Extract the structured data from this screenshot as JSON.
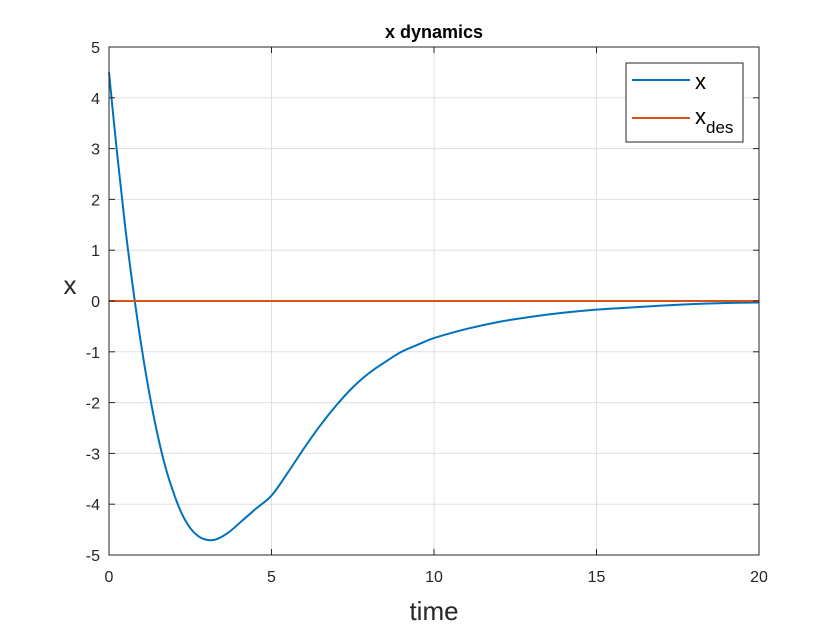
{
  "chart_data": {
    "type": "line",
    "title": "x dynamics",
    "xlabel": "time",
    "ylabel": "x",
    "xlim": [
      0,
      20
    ],
    "ylim": [
      -5,
      5
    ],
    "xticks": [
      0,
      5,
      10,
      15,
      20
    ],
    "yticks": [
      -5,
      -4,
      -3,
      -2,
      -1,
      0,
      1,
      2,
      3,
      4,
      5
    ],
    "grid": true,
    "legend_position": "top-right",
    "series": [
      {
        "name": "x",
        "color": "#0072BD",
        "x": [
          0,
          0.25,
          0.5,
          0.75,
          1,
          1.25,
          1.5,
          1.75,
          2,
          2.25,
          2.5,
          2.75,
          3,
          3.25,
          3.5,
          3.75,
          4,
          4.5,
          5,
          5.5,
          6,
          6.5,
          7,
          7.5,
          8,
          8.5,
          9,
          9.5,
          10,
          11,
          12,
          13,
          14,
          15,
          16,
          17,
          18,
          19,
          20
        ],
        "y": [
          4.5,
          2.9,
          1.45,
          0.2,
          -0.9,
          -1.85,
          -2.65,
          -3.3,
          -3.8,
          -4.2,
          -4.47,
          -4.63,
          -4.7,
          -4.7,
          -4.63,
          -4.52,
          -4.38,
          -4.1,
          -3.83,
          -3.38,
          -2.9,
          -2.45,
          -2.05,
          -1.7,
          -1.42,
          -1.2,
          -1.0,
          -0.86,
          -0.73,
          -0.55,
          -0.41,
          -0.31,
          -0.23,
          -0.17,
          -0.13,
          -0.09,
          -0.06,
          -0.04,
          -0.03
        ]
      },
      {
        "name": "x_des",
        "color": "#D95319",
        "x": [
          0,
          20
        ],
        "y": [
          0,
          0
        ]
      }
    ],
    "legend": {
      "entries": [
        {
          "main": "x",
          "sub": ""
        },
        {
          "main": "x",
          "sub": "des"
        }
      ]
    }
  }
}
